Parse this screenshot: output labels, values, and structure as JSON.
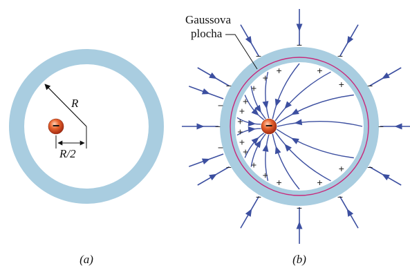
{
  "panel_a": {
    "label": "(a)",
    "radius_label": "R",
    "offset_label": "R/2",
    "charge_sign": "−"
  },
  "panel_b": {
    "label": "(b)",
    "surface_label_line1": "Gaussova",
    "surface_label_line2": "plocha",
    "charge_sign": "−",
    "outer_sign": "−",
    "inner_sign": "+"
  },
  "colors": {
    "shell": "#a9cde0",
    "field_line": "#3c4fa0",
    "gaussian_surface": "#c8287a",
    "charge": "#d84a2a"
  }
}
